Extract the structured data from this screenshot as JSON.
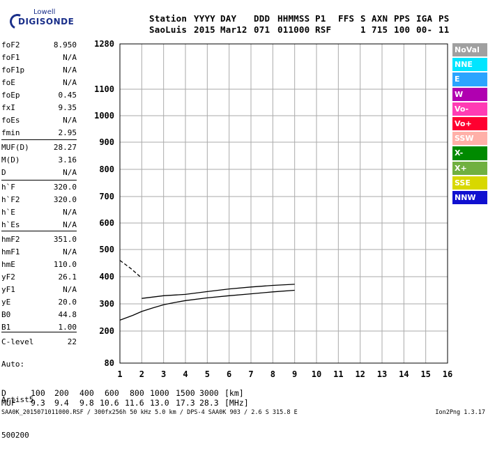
{
  "logo": {
    "line1": "Lowell",
    "line2": "DIGISONDE"
  },
  "header": {
    "row1": {
      "station": "Station",
      "year": "YYYY",
      "day": "DAY",
      "ddd": "DDD",
      "hhmmss": "HHMMSS",
      "p1": "P1",
      "ffs": "FFS",
      "s": "S",
      "axn": "AXN",
      "pps": "PPS",
      "iga": "IGA",
      "ps": "PS"
    },
    "row2": {
      "station": "SaoLuis",
      "year": "2015",
      "day": "Mar12",
      "ddd": "071",
      "hhmmss": "011000",
      "p1": "RSF",
      "s": "1",
      "axn": "715",
      "pps": "100",
      "iga": "00-",
      "ps": "11"
    }
  },
  "parameters": [
    {
      "label": "foF2",
      "value": "8.950"
    },
    {
      "label": "foF1",
      "value": "N/A"
    },
    {
      "label": "foF1p",
      "value": "N/A"
    },
    {
      "label": "foE",
      "value": "N/A"
    },
    {
      "label": "foEp",
      "value": "0.45"
    },
    {
      "label": "fxI",
      "value": "9.35"
    },
    {
      "label": "foEs",
      "value": "N/A"
    },
    {
      "label": "fmin",
      "value": "2.95"
    },
    {
      "label": "MUF(D)",
      "value": "28.27"
    },
    {
      "label": "M(D)",
      "value": "3.16"
    },
    {
      "label": "D",
      "value": "N/A"
    },
    {
      "label": "h`F",
      "value": "320.0"
    },
    {
      "label": "h`F2",
      "value": "320.0"
    },
    {
      "label": "h`E",
      "value": "N/A"
    },
    {
      "label": "h`Es",
      "value": "N/A"
    },
    {
      "label": "hmF2",
      "value": "351.0"
    },
    {
      "label": "hmF1",
      "value": "N/A"
    },
    {
      "label": "hmE",
      "value": "110.0"
    },
    {
      "label": "yF2",
      "value": "26.1"
    },
    {
      "label": "yF1",
      "value": "N/A"
    },
    {
      "label": "yE",
      "value": "20.0"
    },
    {
      "label": "B0",
      "value": "44.8"
    },
    {
      "label": "B1",
      "value": "1.00"
    },
    {
      "label": "C-level",
      "value": "22"
    }
  ],
  "auto": {
    "line1": "Auto:",
    "line2": "Artist5",
    "line3": "500200"
  },
  "legend": [
    {
      "label": "NoVal",
      "color": "#a0a0a0"
    },
    {
      "label": "NNE",
      "color": "#00e5ff"
    },
    {
      "label": "E",
      "color": "#2ba4ff"
    },
    {
      "label": "W",
      "color": "#b000b0"
    },
    {
      "label": "Vo-",
      "color": "#ff3cb4"
    },
    {
      "label": "Vo+",
      "color": "#ff0030"
    },
    {
      "label": "SSW",
      "color": "#ffb0a8"
    },
    {
      "label": "X-",
      "color": "#008a00"
    },
    {
      "label": "X+",
      "color": "#70b040"
    },
    {
      "label": "SSE",
      "color": "#d8d800"
    },
    {
      "label": "NNW",
      "color": "#1010d0"
    }
  ],
  "muf_table": {
    "d_label": "D",
    "d_values": [
      "100",
      "200",
      "400",
      "600",
      "800",
      "1000",
      "1500",
      "3000"
    ],
    "d_unit": "[km]",
    "muf_label": "MUF",
    "muf_values": [
      "9.3",
      "9.4",
      "9.8",
      "10.6",
      "11.6",
      "13.0",
      "17.3",
      "28.3"
    ],
    "muf_unit": "[MHz]"
  },
  "footer": {
    "left": "SAA0K_2015071011000.RSF / 300fx256h 50 kHz 5.0 km / DPS-4 SAA0K 903 / 2.6 S 315.8 E",
    "right": "Ion2Png 1.3.17"
  },
  "chart_data": {
    "type": "scatter",
    "title": "",
    "xlabel": "",
    "ylabel": "",
    "xlim": [
      1,
      16
    ],
    "ylim": [
      80,
      1280
    ],
    "x_ticks": [
      "1",
      "2",
      "3",
      "4",
      "5",
      "6",
      "7",
      "8",
      "9",
      "10",
      "11",
      "12",
      "13",
      "14",
      "15",
      "16"
    ],
    "y_ticks": [
      "80",
      "200",
      "300",
      "400",
      "500",
      "600",
      "700",
      "800",
      "900",
      "1000",
      "1100",
      "1280"
    ],
    "y_tick_values": [
      80,
      200,
      300,
      400,
      500,
      600,
      700,
      800,
      900,
      1000,
      1100,
      1280
    ],
    "grid": true,
    "series": [
      {
        "name": "",
        "type": "line",
        "x": [
          1.0,
          1.6,
          2.0,
          2.5,
          3.0,
          3.5,
          4.0,
          5.0,
          6.0,
          7.0,
          8.0,
          9.0
        ],
        "y": [
          240,
          258,
          272,
          285,
          297,
          305,
          312,
          322,
          330,
          337,
          344,
          350
        ]
      },
      {
        "name": "",
        "type": "line",
        "x": [
          2.0,
          3.0,
          4.0,
          5.0,
          6.0,
          7.0,
          8.0,
          9.0
        ],
        "y": [
          320,
          330,
          335,
          345,
          355,
          362,
          368,
          372
        ]
      },
      {
        "name": "",
        "type": "dashed",
        "x": [
          1.0,
          1.5,
          2.0
        ],
        "y": [
          460,
          430,
          395
        ]
      }
    ]
  }
}
